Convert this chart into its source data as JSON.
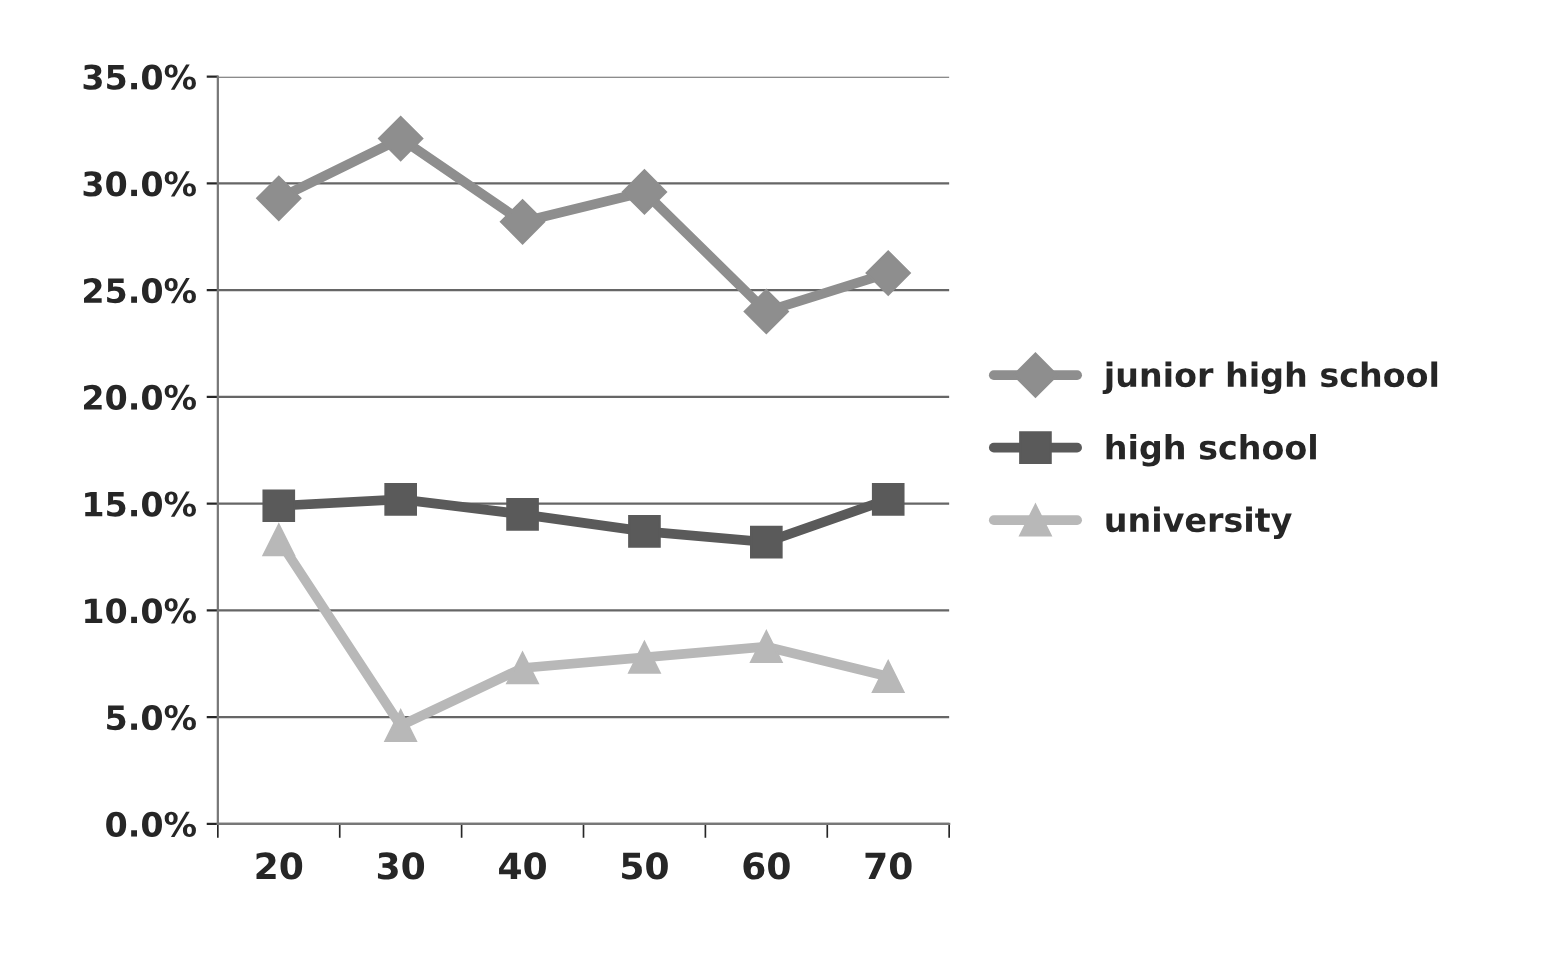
{
  "chart_data": {
    "type": "line",
    "categories": [
      "20",
      "30",
      "40",
      "50",
      "60",
      "70"
    ],
    "series": [
      {
        "name": "junior high school",
        "color": "#8e8e8e",
        "marker": "diamond",
        "values": [
          29.3,
          32.1,
          28.2,
          29.6,
          24.0,
          25.8
        ]
      },
      {
        "name": "high school",
        "color": "#5a5a5a",
        "marker": "square",
        "values": [
          14.9,
          15.2,
          14.5,
          13.7,
          13.2,
          15.2
        ]
      },
      {
        "name": "university",
        "color": "#b8b8b8",
        "marker": "triangle",
        "values": [
          13.3,
          4.6,
          7.3,
          7.8,
          8.3,
          6.9
        ]
      }
    ],
    "ylim": [
      0,
      35
    ],
    "yticks": [
      {
        "value": 0,
        "label": "0.0%"
      },
      {
        "value": 5,
        "label": "5.0%"
      },
      {
        "value": 10,
        "label": "10.0%"
      },
      {
        "value": 15,
        "label": "15.0%"
      },
      {
        "value": 20,
        "label": "20.0%"
      },
      {
        "value": 25,
        "label": "25.0%"
      },
      {
        "value": 30,
        "label": "30.0%"
      },
      {
        "value": 35,
        "label": "35.0%"
      }
    ],
    "grid": "y",
    "legend": "right",
    "line_style": "solid"
  }
}
